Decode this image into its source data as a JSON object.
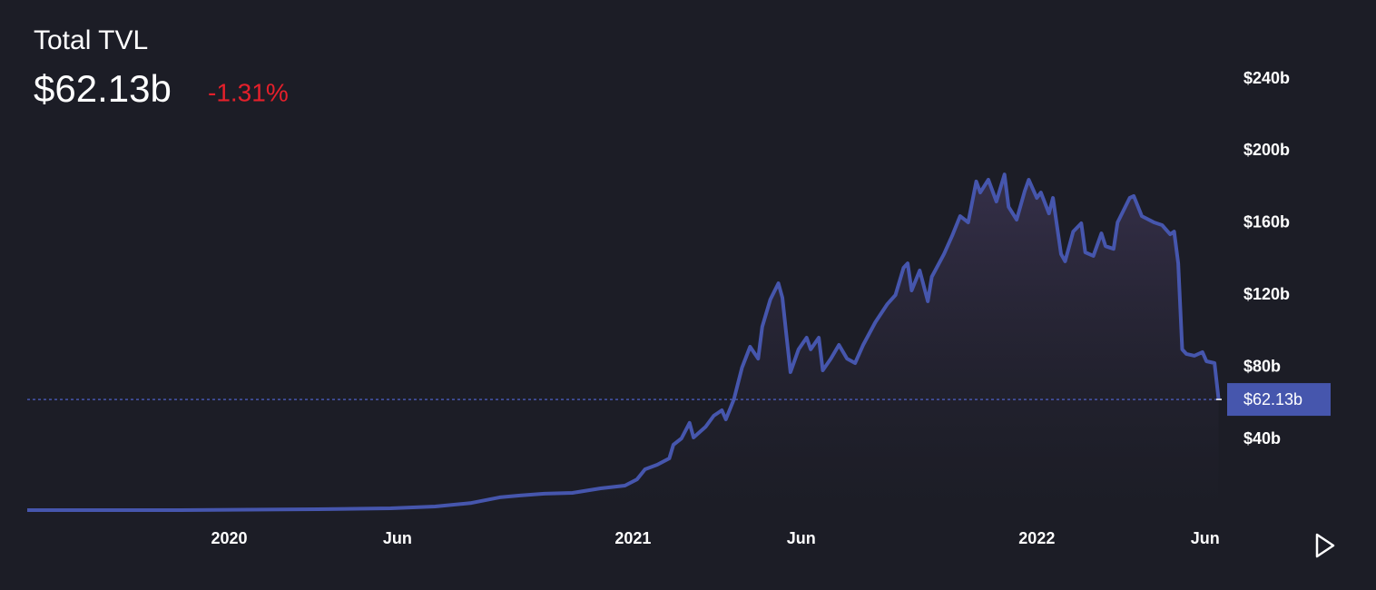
{
  "chart_data": {
    "type": "line",
    "title": "Total TVL",
    "last_label": "$62.13b",
    "change_label": "-1.31%",
    "color": "#4656ad",
    "change_color": "#e5202b",
    "x": [
      2019.5,
      2019.88,
      2020.22,
      2020.4,
      2020.51,
      2020.6,
      2020.67,
      2020.72,
      2020.78,
      2020.85,
      2020.92,
      2020.98,
      2021.01,
      2021.03,
      2021.06,
      2021.09,
      2021.1,
      2021.12,
      2021.14,
      2021.15,
      2021.18,
      2021.2,
      2021.22,
      2021.23,
      2021.25,
      2021.27,
      2021.29,
      2021.31,
      2021.32,
      2021.34,
      2021.36,
      2021.37,
      2021.38,
      2021.39,
      2021.41,
      2021.43,
      2021.44,
      2021.46,
      2021.47,
      2021.49,
      2021.51,
      2021.53,
      2021.55,
      2021.57,
      2021.6,
      2021.63,
      2021.65,
      2021.67,
      2021.68,
      2021.69,
      2021.71,
      2021.73,
      2021.74,
      2021.77,
      2021.79,
      2021.81,
      2021.83,
      2021.85,
      2021.86,
      2021.88,
      2021.9,
      2021.92,
      2021.93,
      2021.95,
      2021.97,
      2021.98,
      2022.0,
      2022.01,
      2022.03,
      2022.04,
      2022.06,
      2022.07,
      2022.09,
      2022.11,
      2022.12,
      2022.14,
      2022.16,
      2022.17,
      2022.19,
      2022.2,
      2022.23,
      2022.24,
      2022.26,
      2022.29,
      2022.31,
      2022.33,
      2022.34,
      2022.35,
      2022.36,
      2022.37,
      2022.39,
      2022.41,
      2022.42,
      2022.44,
      2022.45
    ],
    "values": [
      0.7,
      0.7,
      1.2,
      1.7,
      2.7,
      4.7,
      7.8,
      8.8,
      9.8,
      10.3,
      12.8,
      14.3,
      17.8,
      23.4,
      25.9,
      29.4,
      37.0,
      40.5,
      49.1,
      41.0,
      47.0,
      53.1,
      56.1,
      51.1,
      62.2,
      79.8,
      91.4,
      84.8,
      102.5,
      117.6,
      126.6,
      118.6,
      97.4,
      77.3,
      89.9,
      96.4,
      89.9,
      96.4,
      78.3,
      84.8,
      92.4,
      84.8,
      82.3,
      92.4,
      105.0,
      115.1,
      120.1,
      135.2,
      137.7,
      122.6,
      133.7,
      116.6,
      130.2,
      142.8,
      152.8,
      163.9,
      160.4,
      183.1,
      177.0,
      184.1,
      172.0,
      187.0,
      169.0,
      161.9,
      177.8,
      184.1,
      174.0,
      177.0,
      165.4,
      174.0,
      142.8,
      138.8,
      155.3,
      159.9,
      143.8,
      141.8,
      154.3,
      147.2,
      145.7,
      160.4,
      174.0,
      175.0,
      163.9,
      160.4,
      158.9,
      153.8,
      155.3,
      137.7,
      89.9,
      87.4,
      86.4,
      88.4,
      83.3,
      82.3,
      62.13
    ],
    "xlim": [
      2019.5,
      2022.46
    ],
    "xticks": [
      2020,
      {
        "value": 2020.4167,
        "label": "Jun"
      },
      2021,
      {
        "value": 2021.4167,
        "label": "Jun"
      },
      2022,
      {
        "value": 2022.4167,
        "label": "Jun"
      }
    ],
    "ylim": [
      0,
      260
    ],
    "yticks": [
      {
        "value": 40,
        "label": "$40b"
      },
      {
        "value": 80,
        "label": "$80b"
      },
      {
        "value": 120,
        "label": "$120b"
      },
      {
        "value": 160,
        "label": "$160b"
      },
      {
        "value": 200,
        "label": "$200b"
      },
      {
        "value": 240,
        "label": "$240b"
      }
    ],
    "grid": false
  }
}
